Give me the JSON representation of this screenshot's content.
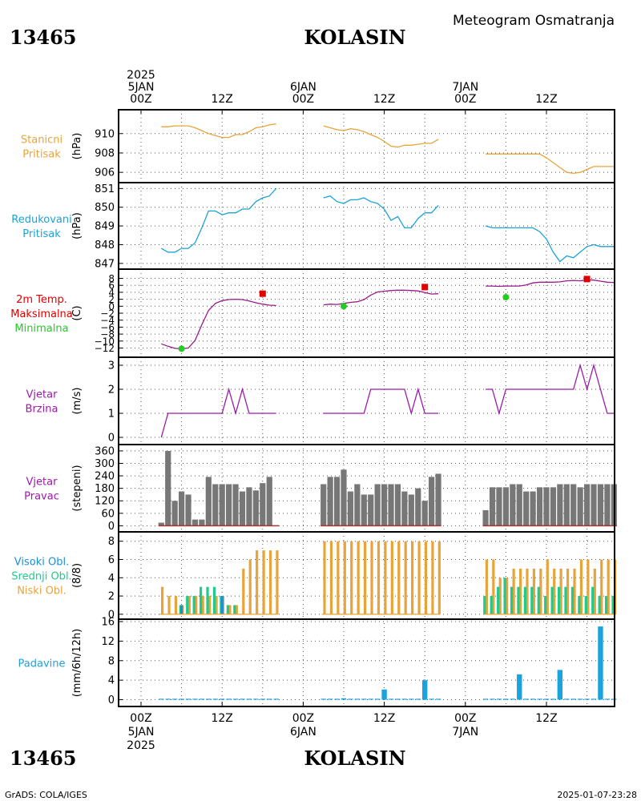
{
  "header": {
    "station_id": "13465",
    "station_name": "KOLASIN",
    "title": "Meteogram Osmatranja",
    "year": "2025",
    "footer_left": "GrADS: COLA/IGES",
    "footer_right": "2025-01-07-23:28"
  },
  "time_axis": {
    "top_ticks": [
      {
        "x": 0,
        "lines": [
          "2025",
          "5JAN",
          "00Z"
        ]
      },
      {
        "x": 12,
        "lines": [
          "12Z"
        ]
      },
      {
        "x": 24,
        "lines": [
          "6JAN",
          "00Z"
        ]
      },
      {
        "x": 36,
        "lines": [
          "12Z"
        ]
      },
      {
        "x": 48,
        "lines": [
          "7JAN",
          "00Z"
        ]
      },
      {
        "x": 60,
        "lines": [
          "12Z"
        ]
      }
    ],
    "bottom_ticks": [
      {
        "x": 0,
        "lines": [
          "00Z",
          "5JAN",
          "2025"
        ]
      },
      {
        "x": 12,
        "lines": [
          "12Z"
        ]
      },
      {
        "x": 24,
        "lines": [
          "00Z",
          "6JAN"
        ]
      },
      {
        "x": 36,
        "lines": [
          "12Z"
        ]
      },
      {
        "x": 48,
        "lines": [
          "00Z",
          "7JAN"
        ]
      },
      {
        "x": 60,
        "lines": [
          "12Z"
        ]
      }
    ]
  },
  "colors": {
    "station_pressure": "#e8a43a",
    "reduced_pressure": "#1ba3d8",
    "temperature_line": "#9b1a8a",
    "tmax": "#e00000",
    "tmin": "#22cc22",
    "wind": "#9b1aa8",
    "direction_bar": "#777777",
    "high_cloud": "#1a8fd8",
    "mid_cloud": "#22c98a",
    "low_cloud": "#e8a43a",
    "precip": "#1ba3e0"
  },
  "chart_data": [
    {
      "type": "line",
      "label_lines": [
        "Stanicni",
        "Pritisak"
      ],
      "unit": "(hPa)",
      "ylim": [
        905.6,
        911.8
      ],
      "yticks": [
        906,
        908,
        910
      ],
      "segments": [
        {
          "x": [
            3,
            4,
            5,
            6,
            7,
            8,
            9,
            10,
            11,
            12,
            13,
            14,
            15,
            16,
            17,
            18,
            19,
            20
          ],
          "values": [
            910.7,
            910.7,
            910.8,
            910.8,
            910.8,
            910.6,
            910.3,
            910.0,
            909.8,
            909.6,
            909.6,
            909.9,
            909.9,
            910.2,
            910.6,
            910.7,
            910.9,
            911.0
          ]
        },
        {
          "x": [
            27,
            28,
            29,
            30,
            31,
            32,
            33,
            34,
            35,
            36,
            37,
            38,
            39,
            40,
            41,
            42,
            43,
            44
          ],
          "values": [
            910.8,
            910.6,
            910.4,
            910.3,
            910.5,
            910.4,
            910.2,
            909.9,
            909.6,
            909.2,
            908.7,
            908.6,
            908.8,
            908.8,
            908.9,
            909.0,
            909.0,
            909.4
          ]
        },
        {
          "x": [
            51,
            52,
            53,
            54,
            55,
            56,
            57,
            58,
            59,
            60,
            61,
            62,
            63,
            64,
            65,
            66,
            67,
            68,
            69,
            70
          ],
          "values": [
            907.9,
            907.9,
            907.9,
            907.9,
            907.9,
            907.9,
            907.9,
            907.9,
            907.9,
            907.5,
            907.0,
            906.5,
            906.0,
            905.9,
            906.0,
            906.3,
            906.6,
            906.6,
            906.6,
            906.6
          ]
        }
      ]
    },
    {
      "type": "line",
      "label_lines": [
        "Redukovani",
        "Pritisak"
      ],
      "unit": "(hPa)",
      "ylim": [
        846.95,
        851.1
      ],
      "yticks": [
        847,
        848,
        849,
        850,
        851
      ],
      "segments": [
        {
          "x": [
            3,
            4,
            5,
            6,
            7,
            8,
            9,
            10,
            11,
            12,
            13,
            14,
            15,
            16,
            17,
            18,
            19,
            20
          ],
          "values": [
            847.8,
            847.6,
            847.6,
            847.8,
            847.8,
            848.1,
            848.9,
            849.8,
            849.8,
            849.6,
            849.7,
            849.7,
            849.9,
            849.9,
            850.3,
            850.5,
            850.6,
            851.0
          ]
        },
        {
          "x": [
            27,
            28,
            29,
            30,
            31,
            32,
            33,
            34,
            35,
            36,
            37,
            38,
            39,
            40,
            41,
            42,
            43,
            44
          ],
          "values": [
            850.5,
            850.6,
            850.3,
            850.2,
            850.4,
            850.4,
            850.5,
            850.3,
            850.2,
            849.9,
            849.3,
            849.5,
            848.9,
            848.9,
            849.4,
            849.7,
            849.7,
            850.1
          ]
        },
        {
          "x": [
            51,
            52,
            53,
            54,
            55,
            56,
            57,
            58,
            59,
            60,
            61,
            62,
            63,
            64,
            65,
            66,
            67,
            68,
            69,
            70
          ],
          "values": [
            849.0,
            848.9,
            848.9,
            848.9,
            848.9,
            848.9,
            848.9,
            848.9,
            848.7,
            848.3,
            847.6,
            847.1,
            847.4,
            847.3,
            847.6,
            847.9,
            848.0,
            847.9,
            847.9,
            847.9
          ]
        }
      ]
    },
    {
      "type": "line",
      "label_lines": [
        "2m Temp.",
        "Maksimalna",
        "Minimalna"
      ],
      "label_colors": [
        "tmax",
        "tmax",
        "tmin"
      ],
      "unit": "(C)",
      "ylim": [
        -13.5,
        9.5
      ],
      "yticks": [
        -12,
        -10,
        -8,
        -6,
        -4,
        -2,
        0,
        2,
        4,
        6,
        8
      ],
      "segments": [
        {
          "x": [
            3,
            4,
            5,
            6,
            7,
            8,
            9,
            10,
            11,
            12,
            13,
            14,
            15,
            16,
            17,
            18,
            19,
            20
          ],
          "values": [
            -10.8,
            -11.5,
            -12.1,
            -12.2,
            -12.0,
            -9.8,
            -5.3,
            -1.2,
            0.8,
            1.6,
            1.9,
            2.0,
            1.9,
            1.5,
            1.0,
            0.6,
            0.3,
            0.2
          ]
        },
        {
          "x": [
            27,
            28,
            29,
            30,
            31,
            32,
            33,
            34,
            35,
            36,
            37,
            38,
            39,
            40,
            41,
            42,
            43,
            44
          ],
          "values": [
            0.4,
            0.6,
            0.5,
            0.8,
            1.1,
            1.3,
            1.9,
            3.2,
            4.1,
            4.3,
            4.5,
            4.6,
            4.6,
            4.5,
            4.4,
            3.9,
            3.5,
            3.6
          ]
        },
        {
          "x": [
            51,
            52,
            53,
            54,
            55,
            56,
            57,
            58,
            59,
            60,
            61,
            62,
            63,
            64,
            65,
            66,
            67,
            68,
            69,
            70
          ],
          "values": [
            5.8,
            5.8,
            5.7,
            5.8,
            5.8,
            5.8,
            6.1,
            6.7,
            6.9,
            6.9,
            6.9,
            7.0,
            7.3,
            7.4,
            7.3,
            7.6,
            7.5,
            7.2,
            6.9,
            6.8
          ]
        }
      ],
      "tmax": [
        {
          "x": 18,
          "value": 3.6
        },
        {
          "x": 42,
          "value": 5.5
        },
        {
          "x": 66,
          "value": 7.8
        }
      ],
      "tmin": [
        {
          "x": 6,
          "value": -12.2
        },
        {
          "x": 30,
          "value": 0.0
        },
        {
          "x": 54,
          "value": 2.6
        }
      ]
    },
    {
      "type": "line",
      "label_lines": [
        "Vjetar",
        "Brzina"
      ],
      "unit": "(m/s)",
      "ylim": [
        -0.1,
        3.1
      ],
      "yticks": [
        0,
        1,
        2,
        3
      ],
      "segments": [
        {
          "x": [
            3,
            4,
            5,
            6,
            7,
            8,
            9,
            10,
            11,
            12,
            13,
            14,
            15,
            16,
            17,
            18,
            19,
            20
          ],
          "values": [
            0,
            1,
            1,
            1,
            1,
            1,
            1,
            1,
            1,
            1,
            2,
            1,
            2,
            1,
            1,
            1,
            1,
            1
          ]
        },
        {
          "x": [
            27,
            28,
            29,
            30,
            31,
            32,
            33,
            34,
            35,
            36,
            37,
            38,
            39,
            40,
            41,
            42,
            43,
            44
          ],
          "values": [
            1,
            1,
            1,
            1,
            1,
            1,
            1,
            2,
            2,
            2,
            2,
            2,
            2,
            1,
            2,
            1,
            1,
            1
          ]
        },
        {
          "x": [
            51,
            52,
            53,
            54,
            55,
            56,
            57,
            58,
            59,
            60,
            61,
            62,
            63,
            64,
            65,
            66,
            67,
            68,
            69,
            70
          ],
          "values": [
            2,
            2,
            1,
            2,
            2,
            2,
            2,
            2,
            2,
            2,
            2,
            2,
            2,
            2,
            3,
            2,
            3,
            2,
            1,
            1
          ]
        }
      ]
    },
    {
      "type": "bar",
      "label_lines": [
        "Vjetar",
        "Pravac"
      ],
      "unit": "(stepeni)",
      "ylim": [
        -10,
        375
      ],
      "yticks": [
        0,
        60,
        120,
        180,
        240,
        300,
        360
      ],
      "x": [
        3,
        4,
        5,
        6,
        7,
        8,
        9,
        10,
        11,
        12,
        13,
        14,
        15,
        16,
        17,
        18,
        19,
        20,
        27,
        28,
        29,
        30,
        31,
        32,
        33,
        34,
        35,
        36,
        37,
        38,
        39,
        40,
        41,
        42,
        43,
        44,
        51,
        52,
        53,
        54,
        55,
        56,
        57,
        58,
        59,
        60,
        61,
        62,
        63,
        64,
        65,
        66,
        67,
        68,
        69,
        70
      ],
      "values": [
        15,
        360,
        120,
        165,
        150,
        30,
        30,
        235,
        200,
        200,
        200,
        200,
        165,
        185,
        170,
        205,
        235,
        0,
        200,
        235,
        235,
        270,
        165,
        200,
        150,
        150,
        200,
        200,
        200,
        200,
        165,
        150,
        180,
        120,
        235,
        250,
        75,
        185,
        185,
        185,
        200,
        200,
        165,
        165,
        185,
        185,
        185,
        200,
        200,
        200,
        185,
        200,
        200,
        200,
        200,
        200
      ]
    },
    {
      "type": "bar",
      "label_lines": [
        "Visoki Obl.",
        "Srednji Obl.",
        "Niski Obl."
      ],
      "label_colors": [
        "high_cloud",
        "mid_cloud",
        "low_cloud"
      ],
      "unit": "(8/8)",
      "ylim": [
        -0.1,
        8.5
      ],
      "yticks": [
        0,
        2,
        4,
        6,
        8
      ],
      "x": [
        3,
        4,
        5,
        6,
        7,
        8,
        9,
        10,
        11,
        12,
        13,
        14,
        15,
        16,
        17,
        18,
        19,
        20,
        27,
        28,
        29,
        30,
        31,
        32,
        33,
        34,
        35,
        36,
        37,
        38,
        39,
        40,
        41,
        42,
        43,
        44,
        51,
        52,
        53,
        54,
        55,
        56,
        57,
        58,
        59,
        60,
        61,
        62,
        63,
        64,
        65,
        66,
        67,
        68,
        69,
        70
      ],
      "series": [
        {
          "name": "Visoki Obl.",
          "values": [
            0,
            0,
            0,
            1,
            0,
            0,
            0,
            0,
            0,
            2,
            0,
            0,
            0,
            0,
            0,
            0,
            0,
            0,
            0,
            0,
            0,
            0,
            0,
            0,
            0,
            0,
            0,
            0,
            0,
            0,
            0,
            0,
            0,
            0,
            0,
            0,
            0,
            0,
            0,
            0,
            0,
            0,
            0,
            0,
            0,
            0,
            0,
            0,
            0,
            0,
            0,
            0,
            0,
            0,
            0,
            0
          ]
        },
        {
          "name": "Srednji Obl.",
          "values": [
            0,
            0,
            0,
            1,
            2,
            2,
            3,
            3,
            3,
            2,
            1,
            1,
            0,
            0,
            0,
            0,
            0,
            0,
            0,
            0,
            0,
            0,
            0,
            0,
            0,
            0,
            0,
            0,
            0,
            0,
            0,
            0,
            0,
            0,
            0,
            0,
            2,
            2,
            3,
            4,
            3,
            3,
            3,
            3,
            3,
            2,
            3,
            3,
            3,
            3,
            2,
            2,
            3,
            2,
            2,
            2
          ]
        },
        {
          "name": "Niski Obl.",
          "values": [
            3,
            2,
            2,
            1,
            2,
            2,
            2,
            2,
            2,
            2,
            1,
            1,
            5,
            6,
            7,
            7,
            7,
            7,
            8,
            8,
            8,
            8,
            8,
            8,
            8,
            8,
            8,
            8,
            8,
            8,
            8,
            8,
            8,
            8,
            8,
            8,
            6,
            6,
            4,
            4,
            5,
            5,
            5,
            5,
            5,
            6,
            5,
            5,
            5,
            5,
            6,
            6,
            5,
            6,
            6,
            6
          ]
        }
      ]
    },
    {
      "type": "bar",
      "label_lines": [
        "Padavine"
      ],
      "unit": "(mm/6h/12h)",
      "ylim": [
        -0.4,
        16
      ],
      "yticks": [
        0,
        4,
        8,
        12,
        16
      ],
      "x": [
        3,
        4,
        5,
        6,
        7,
        8,
        9,
        10,
        11,
        12,
        13,
        14,
        15,
        16,
        17,
        18,
        19,
        20,
        27,
        28,
        29,
        30,
        31,
        32,
        33,
        34,
        35,
        36,
        37,
        38,
        39,
        40,
        41,
        42,
        43,
        44,
        51,
        52,
        53,
        54,
        55,
        56,
        57,
        58,
        59,
        60,
        61,
        62,
        63,
        64,
        65,
        66,
        67,
        68,
        69,
        70
      ],
      "values": [
        0.1,
        0.1,
        0.1,
        0.1,
        0.1,
        0.1,
        0.1,
        0.1,
        0.1,
        0.1,
        0.1,
        0.1,
        0.1,
        0.1,
        0.1,
        0.1,
        0.1,
        0.1,
        0.1,
        0.1,
        0.1,
        0.3,
        0.1,
        0.1,
        0.1,
        0.1,
        0.1,
        2.1,
        0.1,
        0.1,
        0.1,
        0.1,
        0.1,
        4.0,
        0.1,
        0.1,
        0.1,
        0.1,
        0.1,
        0.1,
        0.1,
        5.2,
        0.1,
        0.1,
        0.1,
        0.1,
        0.1,
        6.1,
        0.1,
        0.1,
        0.1,
        0.1,
        0.1,
        15.0,
        0.1,
        0.1
      ]
    }
  ]
}
